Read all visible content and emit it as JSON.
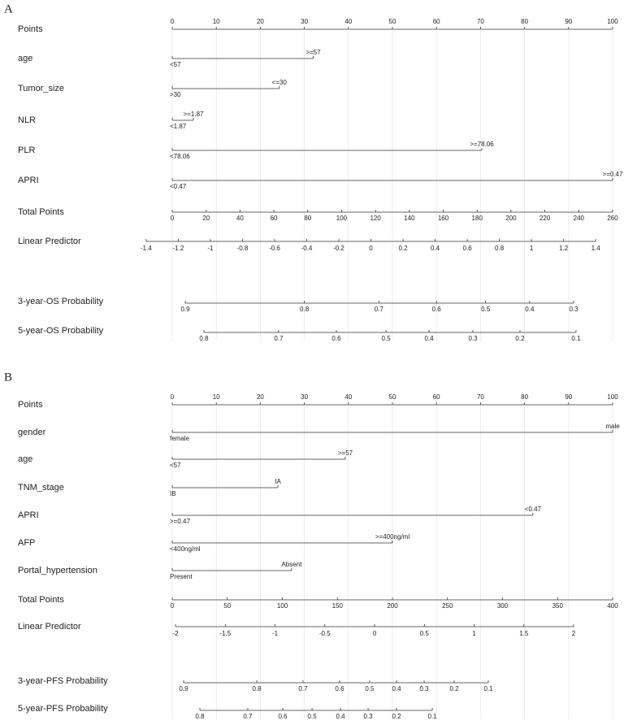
{
  "panels": [
    {
      "label": "A",
      "points": {
        "name": "Points",
        "xlim": [
          0,
          100
        ],
        "ticks": [
          0,
          10,
          20,
          30,
          40,
          50,
          60,
          70,
          80,
          90,
          100
        ]
      },
      "variables": [
        {
          "name": "age",
          "points": 32,
          "end_label": ">=57",
          "start_label": "<57"
        },
        {
          "name": "Tumor_size",
          "points": 24.3,
          "end_label": "<=30",
          "start_label": ">30"
        },
        {
          "name": "NLR",
          "points": 4.8,
          "end_label": ">=1.87",
          "start_label": "<1.87"
        },
        {
          "name": "PLR",
          "points": 70.3,
          "end_label": ">=78.06",
          "start_label": "<78.06"
        },
        {
          "name": "APRI",
          "points": 100,
          "end_label": ">=0.47",
          "start_label": "<0.47"
        }
      ],
      "total_points": {
        "name": "Total Points",
        "xlim": [
          0,
          260
        ],
        "ticks": [
          0,
          20,
          40,
          60,
          80,
          100,
          120,
          140,
          160,
          180,
          200,
          220,
          240,
          260
        ]
      },
      "linear_predictor": {
        "name": "Linear Predictor",
        "xlim": [
          -1.4,
          1.4
        ],
        "total_points_at_xlim": [
          -15.4,
          250
        ],
        "ticks": [
          -1.4,
          -1.2,
          -1,
          -0.8,
          -0.6,
          -0.4,
          -0.2,
          0,
          0.2,
          0.4,
          0.6,
          0.8,
          1,
          1.2,
          1.4
        ]
      },
      "probabilities": [
        {
          "name": "3-year-OS Probability",
          "ticks": [
            0.9,
            0.8,
            0.7,
            0.6,
            0.5,
            0.4,
            0.3
          ],
          "total_points": [
            7.7,
            78,
            122,
            156,
            185,
            211,
            237
          ]
        },
        {
          "name": "5-year-OS Probability",
          "ticks": [
            0.8,
            0.7,
            0.6,
            0.5,
            0.4,
            0.3,
            0.2,
            0.1
          ],
          "total_points": [
            18.7,
            62.8,
            96.9,
            126.2,
            151.6,
            177.5,
            205.3,
            238.4
          ]
        }
      ]
    },
    {
      "label": "B",
      "points": {
        "name": "Points",
        "xlim": [
          0,
          100
        ],
        "ticks": [
          0,
          10,
          20,
          30,
          40,
          50,
          60,
          70,
          80,
          90,
          100
        ]
      },
      "variables": [
        {
          "name": "gender",
          "points": 100,
          "end_label": "male",
          "start_label": "female"
        },
        {
          "name": "age",
          "points": 39.3,
          "end_label": ">=57",
          "start_label": "<57"
        },
        {
          "name": "TNM_stage",
          "points": 24,
          "end_label": "IA",
          "start_label": "IB"
        },
        {
          "name": "APRI",
          "points": 81.9,
          "end_label": "<0.47",
          "start_label": ">=0.47"
        },
        {
          "name": "AFP",
          "points": 50,
          "end_label": ">=400ng/ml",
          "start_label": "<400ng/ml"
        },
        {
          "name": "Portal_hypertension",
          "points": 27.1,
          "end_label": "Absent",
          "start_label": "Present"
        }
      ],
      "total_points": {
        "name": "Total Points",
        "xlim": [
          0,
          400
        ],
        "ticks": [
          0,
          50,
          100,
          150,
          200,
          250,
          300,
          350,
          400
        ]
      },
      "linear_predictor": {
        "name": "Linear Predictor",
        "xlim": [
          -2,
          2
        ],
        "total_points_at_xlim": [
          3,
          364.6
        ],
        "ticks": [
          -2,
          -1.5,
          -1,
          -0.5,
          0,
          0.5,
          1,
          1.5,
          2
        ]
      },
      "probabilities": [
        {
          "name": "3-year-PFS Probability",
          "ticks": [
            0.9,
            0.8,
            0.7,
            0.6,
            0.5,
            0.4,
            0.3,
            0.2,
            0.1
          ],
          "total_points": [
            10.3,
            76.8,
            118.8,
            152,
            179.3,
            203.7,
            228.8,
            256.1,
            287.1
          ]
        },
        {
          "name": "5-year-PFS Probability",
          "ticks": [
            0.8,
            0.7,
            0.6,
            0.5,
            0.4,
            0.3,
            0.2,
            0.1
          ],
          "total_points": [
            25.1,
            68.6,
            100.4,
            127,
            152.8,
            177.9,
            203.7,
            236.2
          ]
        }
      ]
    }
  ]
}
